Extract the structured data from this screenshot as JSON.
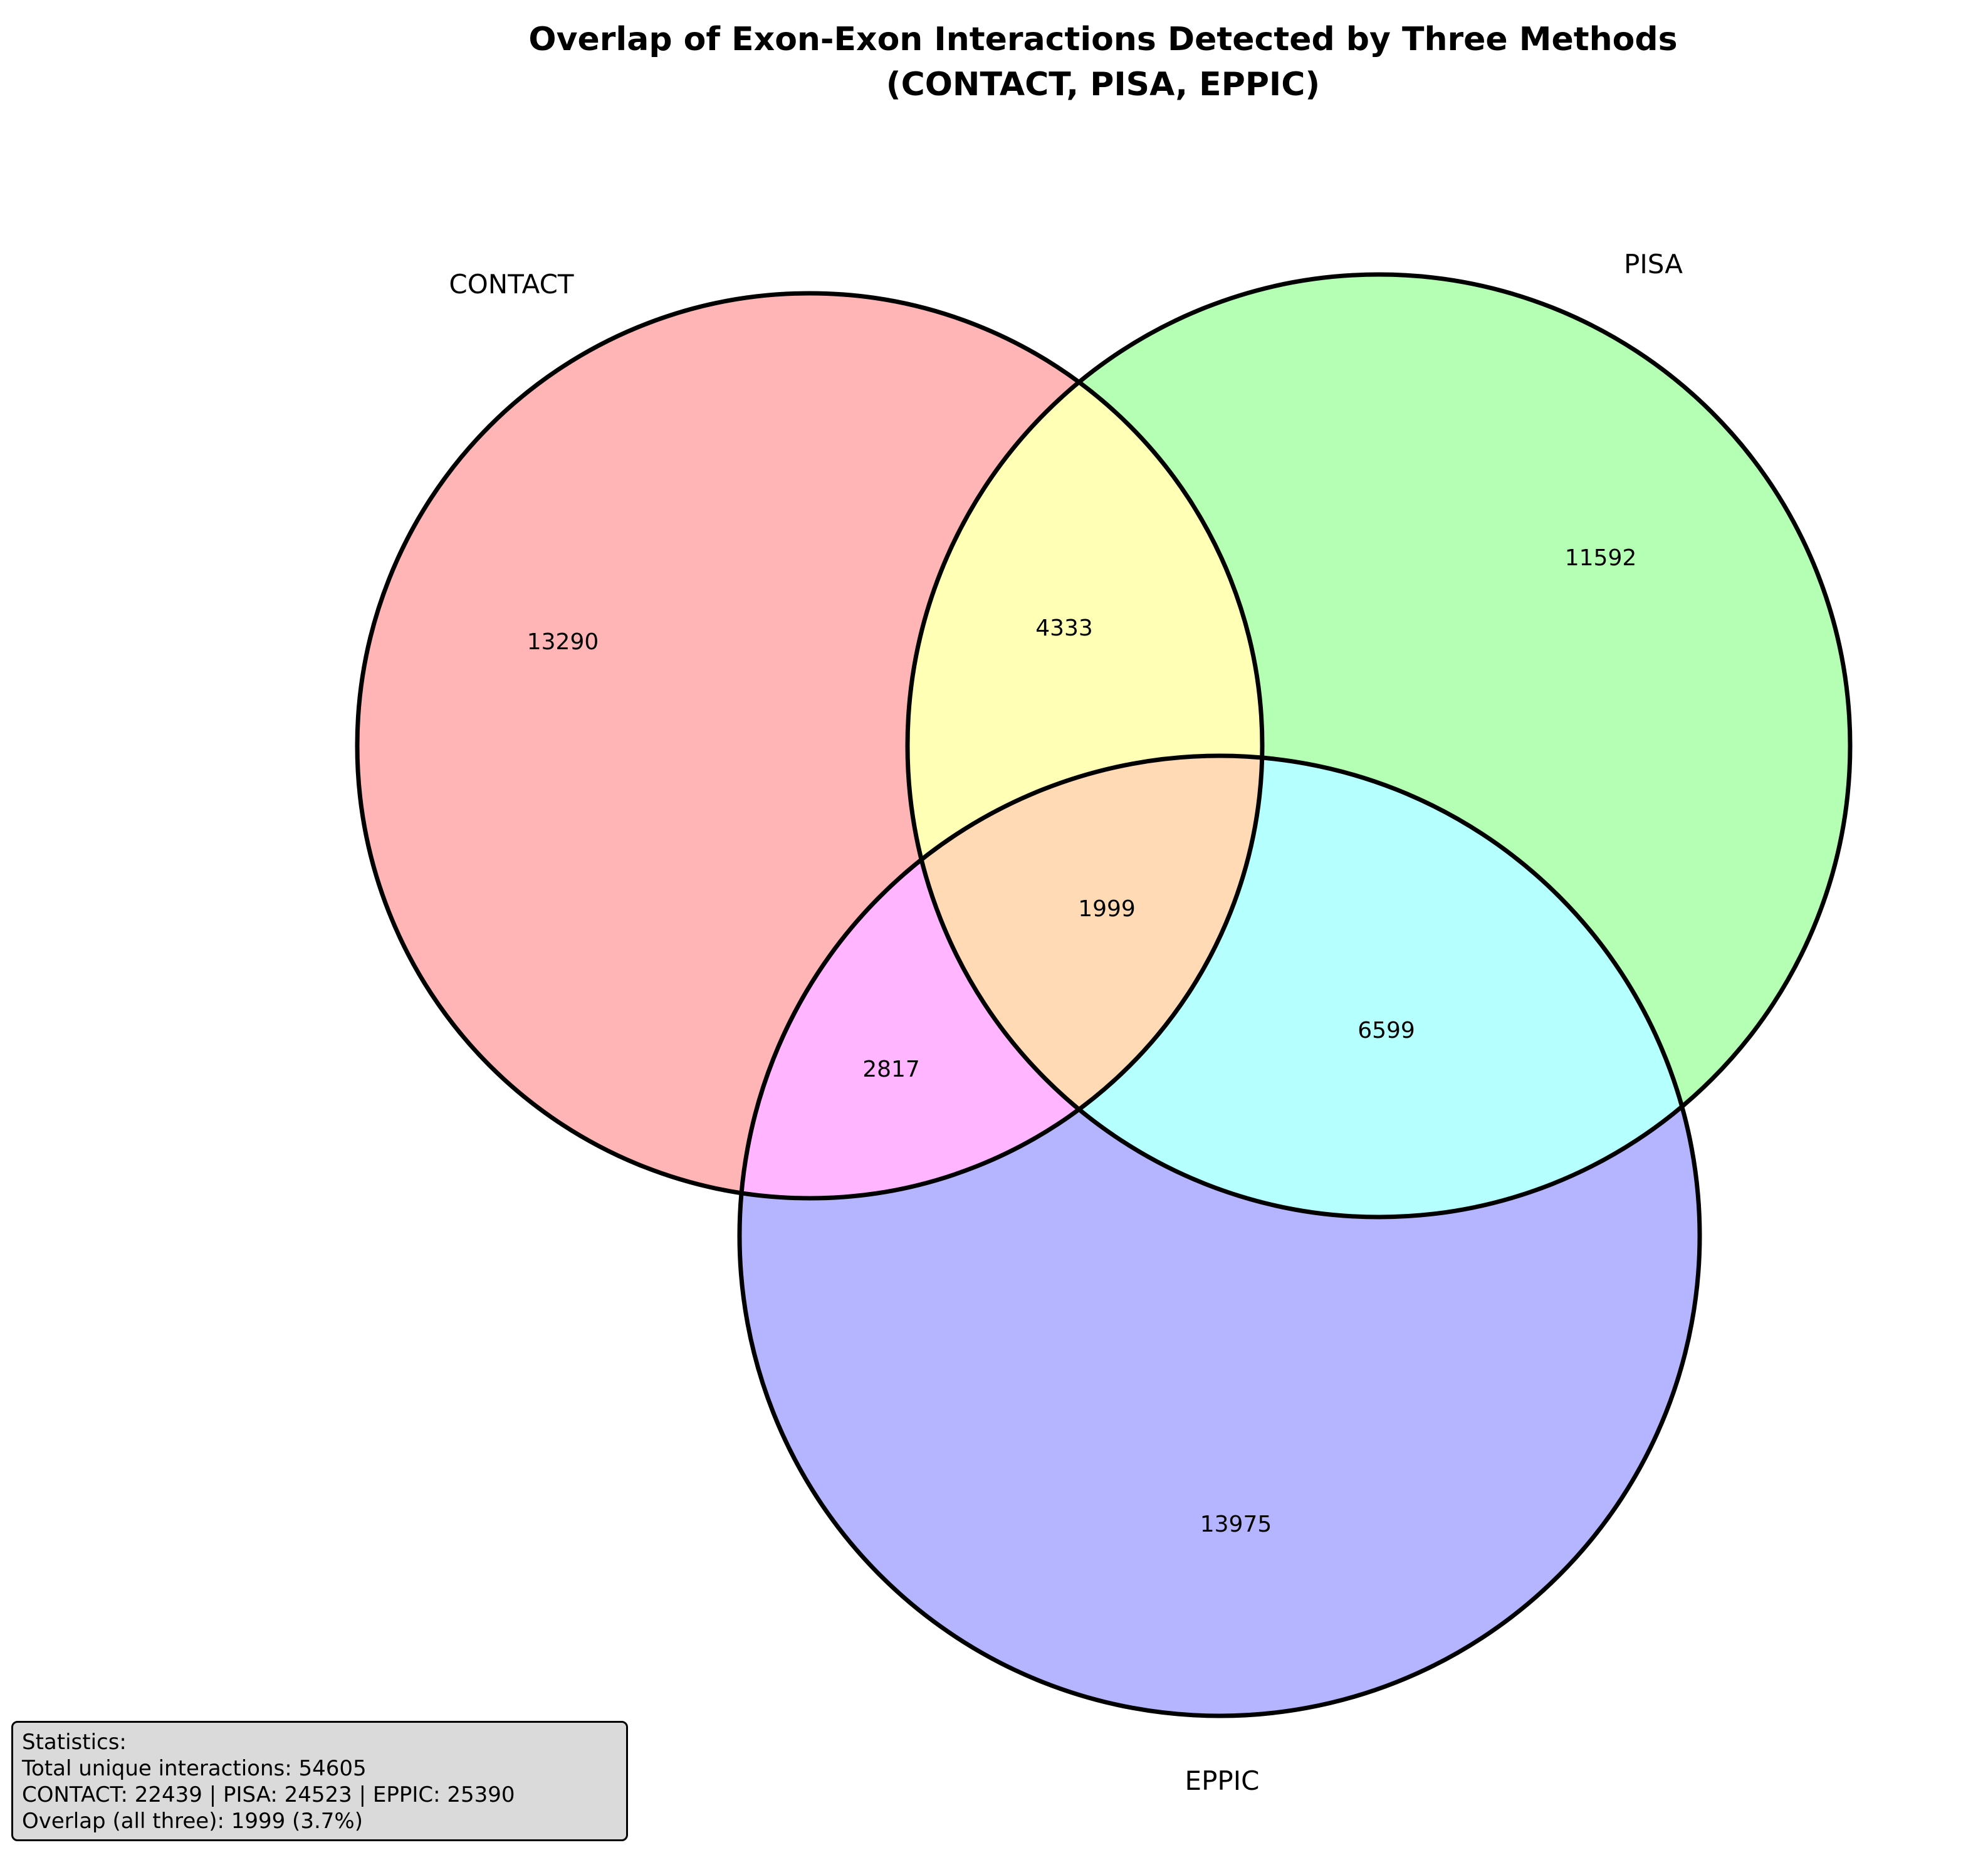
{
  "title": {
    "line1": "Overlap of Exon-Exon Interactions Detected by Three Methods",
    "line2": "(CONTACT, PISA, EPPIC)"
  },
  "sets": [
    {
      "name": "CONTACT",
      "color": "#ffb5b5"
    },
    {
      "name": "PISA",
      "color": "#b5ffb5"
    },
    {
      "name": "EPPIC",
      "color": "#b5b5ff"
    }
  ],
  "regions": {
    "contact_only": {
      "count": "13290",
      "color": "#ffb5b5"
    },
    "pisa_only": {
      "count": "11592",
      "color": "#b5ffb5"
    },
    "eppic_only": {
      "count": "13975",
      "color": "#b5b5ff"
    },
    "contact_pisa": {
      "count": "4333",
      "color": "#ffffb5"
    },
    "contact_eppic": {
      "count": "2817",
      "color": "#ffb5ff"
    },
    "pisa_eppic": {
      "count": "6599",
      "color": "#b5ffff"
    },
    "all_three": {
      "count": "1999",
      "color": "#ffdab5"
    }
  },
  "stats": {
    "heading": "Statistics:",
    "total": "Total unique interactions: 54605",
    "per_set": "CONTACT: 22439 | PISA: 24523 | EPPIC: 25390",
    "overlap": "Overlap (all three): 1999 (3.7%)"
  }
}
